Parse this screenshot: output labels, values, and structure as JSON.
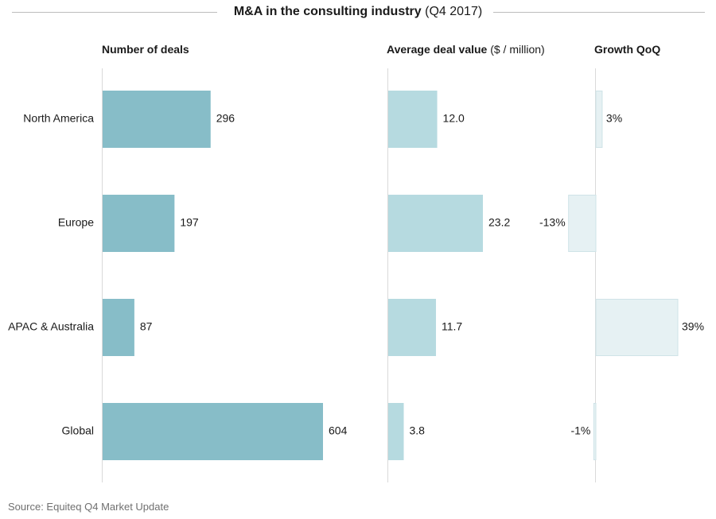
{
  "title": {
    "main": "M&A in the consulting industry",
    "period": "(Q4 2017)"
  },
  "headers": {
    "deals": "Number of deals",
    "value_bold": "Average deal value",
    "value_unit": "($ / million)",
    "growth": "Growth QoQ"
  },
  "source": "Source: Equiteq Q4 Market Update",
  "colors": {
    "deals": "#87bdc8",
    "value": "#b6dae0",
    "growth": "#e6f1f3",
    "growth_border": "#cfe3e7",
    "axis": "#d9d9d9"
  },
  "chart_data": {
    "type": "bar",
    "orientation": "horizontal",
    "categories": [
      "North America",
      "Europe",
      "APAC & Australia",
      "Global"
    ],
    "series": [
      {
        "name": "Number of deals",
        "values": [
          296,
          197,
          87,
          604
        ],
        "labels": [
          "296",
          "197",
          "87",
          "604"
        ]
      },
      {
        "name": "Average deal value ($ / million)",
        "values": [
          12.0,
          23.2,
          11.7,
          3.8
        ],
        "labels": [
          "12.0",
          "23.2",
          "11.7",
          "3.8"
        ]
      },
      {
        "name": "Growth QoQ",
        "values": [
          3,
          -13,
          39,
          -1
        ],
        "labels": [
          "3%",
          "-13%",
          "39%",
          "-1%"
        ]
      }
    ]
  }
}
